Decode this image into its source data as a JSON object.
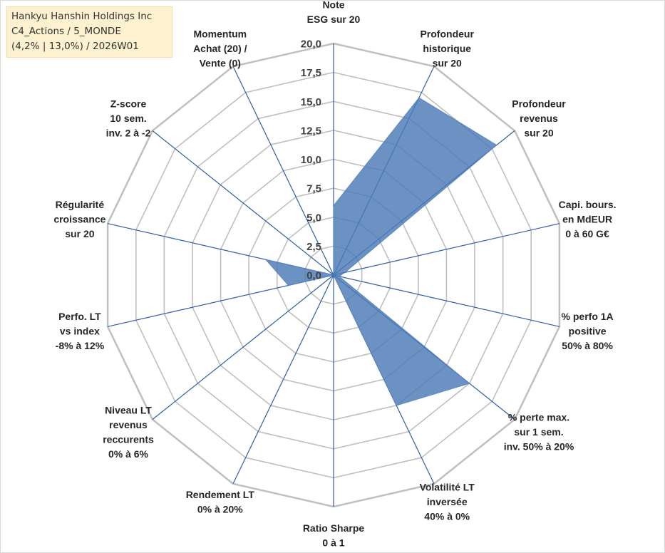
{
  "info": {
    "line1": "Hankyu Hanshin Holdings Inc",
    "line2": "C4_Actions / 5_MONDE",
    "line3": "(4,2% | 13,0%) / 2026W01"
  },
  "chart_data": {
    "type": "radar",
    "title": "Hankyu Hanshin Holdings Inc",
    "rmin": 0,
    "rmax": 20,
    "step": 2.5,
    "ticks": [
      "0,0",
      "2,5",
      "5,0",
      "7,5",
      "10,0",
      "12,5",
      "15,0",
      "17,5",
      "20,0"
    ],
    "axes": [
      {
        "label": [
          "Note",
          "ESG sur 20"
        ],
        "value": 6
      },
      {
        "label": [
          "Profondeur",
          "historique",
          "sur 20"
        ],
        "value": 17
      },
      {
        "label": [
          "Profondeur",
          "revenus",
          "sur 20"
        ],
        "value": 18
      },
      {
        "label": [
          "Capi. bours.",
          "en MdEUR",
          "0 à 60 G€"
        ],
        "value": 1
      },
      {
        "label": [
          "% perfo 1A",
          "positive",
          "50% à 80%"
        ],
        "value": 0.5
      },
      {
        "label": [
          "% perte max.",
          "sur 1 sem.",
          "inv. 50% à 20%"
        ],
        "value": 15
      },
      {
        "label": [
          "Volatilité LT",
          "inversée",
          "40% à 0%"
        ],
        "value": 12.5
      },
      {
        "label": [
          "Ratio Sharpe",
          "0 à 1"
        ],
        "value": 0
      },
      {
        "label": [
          "Rendement LT",
          "0% à 20%"
        ],
        "value": 0
      },
      {
        "label": [
          "Niveau LT",
          "revenus",
          "reccurents",
          "0% à 6%"
        ],
        "value": 0
      },
      {
        "label": [
          "Perfo. LT",
          "vs index",
          "-8% à 12%"
        ],
        "value": 4
      },
      {
        "label": [
          "Régularité",
          "croissance",
          "sur 20"
        ],
        "value": 6
      },
      {
        "label": [
          "Z-score",
          "10 sem.",
          "inv. 2 à -2"
        ],
        "value": 0
      },
      {
        "label": [
          "Momentum",
          "Achat (20) /",
          "Vente (0)"
        ],
        "value": 0
      }
    ],
    "series": [
      {
        "name": "Hankyu Hanshin Holdings Inc",
        "color": "#4a7ab5"
      }
    ],
    "colors": {
      "grid": "#bfbfbf",
      "spoke": "#2e5ea8",
      "fill": "#4a7ab5",
      "stroke": "#5b86c0"
    }
  }
}
